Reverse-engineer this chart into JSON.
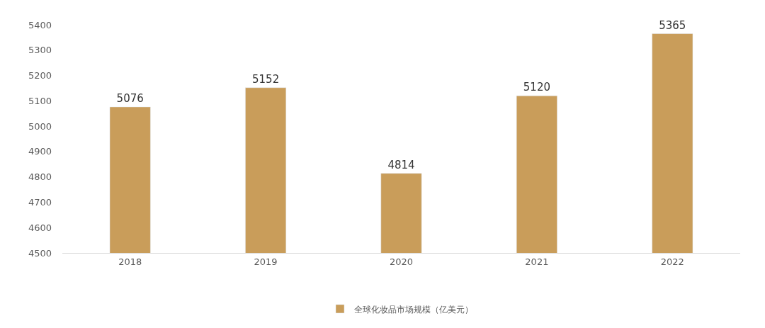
{
  "chart_data": {
    "type": "bar",
    "categories": [
      "2018",
      "2019",
      "2020",
      "2021",
      "2022"
    ],
    "series": [
      {
        "name": "全球化妆品市场规模（亿美元）",
        "color": "#c99d5a",
        "values": [
          5076,
          5152,
          4814,
          5120,
          5365
        ]
      }
    ],
    "ylim": [
      4500,
      5400
    ],
    "yticks": [
      4500,
      4600,
      4700,
      4800,
      4900,
      5000,
      5100,
      5200,
      5300,
      5400
    ],
    "data_labels": true,
    "grid": false,
    "legend": "bottom"
  }
}
